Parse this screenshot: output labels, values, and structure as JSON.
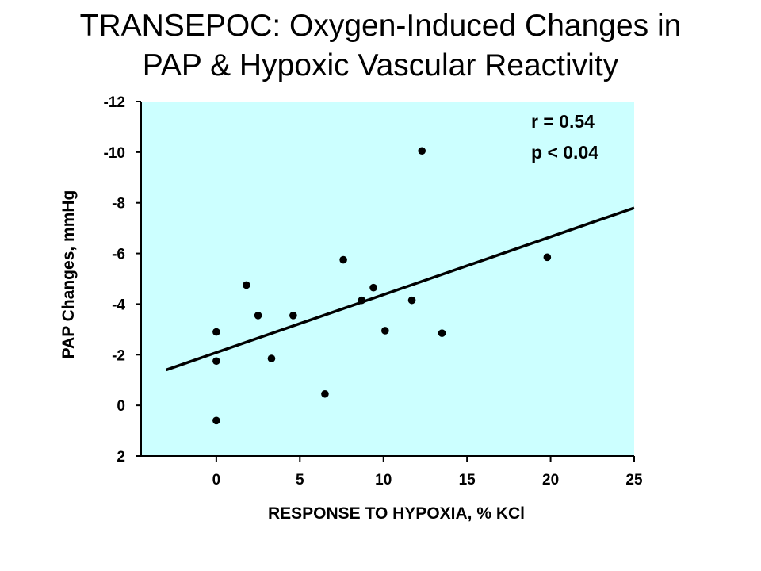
{
  "title_line1": "TRANSEPOC: Oxygen-Induced Changes in",
  "title_line2": "PAP & Hypoxic Vascular Reactivity",
  "chart_data": {
    "type": "scatter",
    "title": "TRANSEPOC: Oxygen-Induced Changes in PAP & Hypoxic Vascular Reactivity",
    "xlabel": "RESPONSE TO HYPOXIA, % KCl",
    "ylabel": "PAP Changes, mmHg",
    "xlim": [
      -4.5,
      25
    ],
    "ylim": [
      2,
      -12
    ],
    "y_inverted": true,
    "xticks": [
      0,
      5,
      10,
      15,
      20,
      25
    ],
    "yticks": [
      -12,
      -10,
      -8,
      -6,
      -4,
      -2,
      0,
      2
    ],
    "plot_background": "#ccffff",
    "points": [
      {
        "x": 0,
        "y": 0.6
      },
      {
        "x": 0,
        "y": -1.75
      },
      {
        "x": 0,
        "y": -2.9
      },
      {
        "x": 1.8,
        "y": -4.75
      },
      {
        "x": 2.5,
        "y": -3.55
      },
      {
        "x": 3.3,
        "y": -1.85
      },
      {
        "x": 4.6,
        "y": -3.55
      },
      {
        "x": 6.5,
        "y": -0.45
      },
      {
        "x": 7.6,
        "y": -5.75
      },
      {
        "x": 8.7,
        "y": -4.15
      },
      {
        "x": 9.4,
        "y": -4.65
      },
      {
        "x": 10.1,
        "y": -2.95
      },
      {
        "x": 11.7,
        "y": -4.15
      },
      {
        "x": 12.3,
        "y": -10.05
      },
      {
        "x": 13.5,
        "y": -2.85
      },
      {
        "x": 19.8,
        "y": -5.85
      }
    ],
    "regression_line": {
      "x": [
        -3,
        25
      ],
      "y": [
        -1.4,
        -7.8
      ]
    },
    "annotations": [
      "r = 0.54",
      "p < 0.04"
    ]
  }
}
